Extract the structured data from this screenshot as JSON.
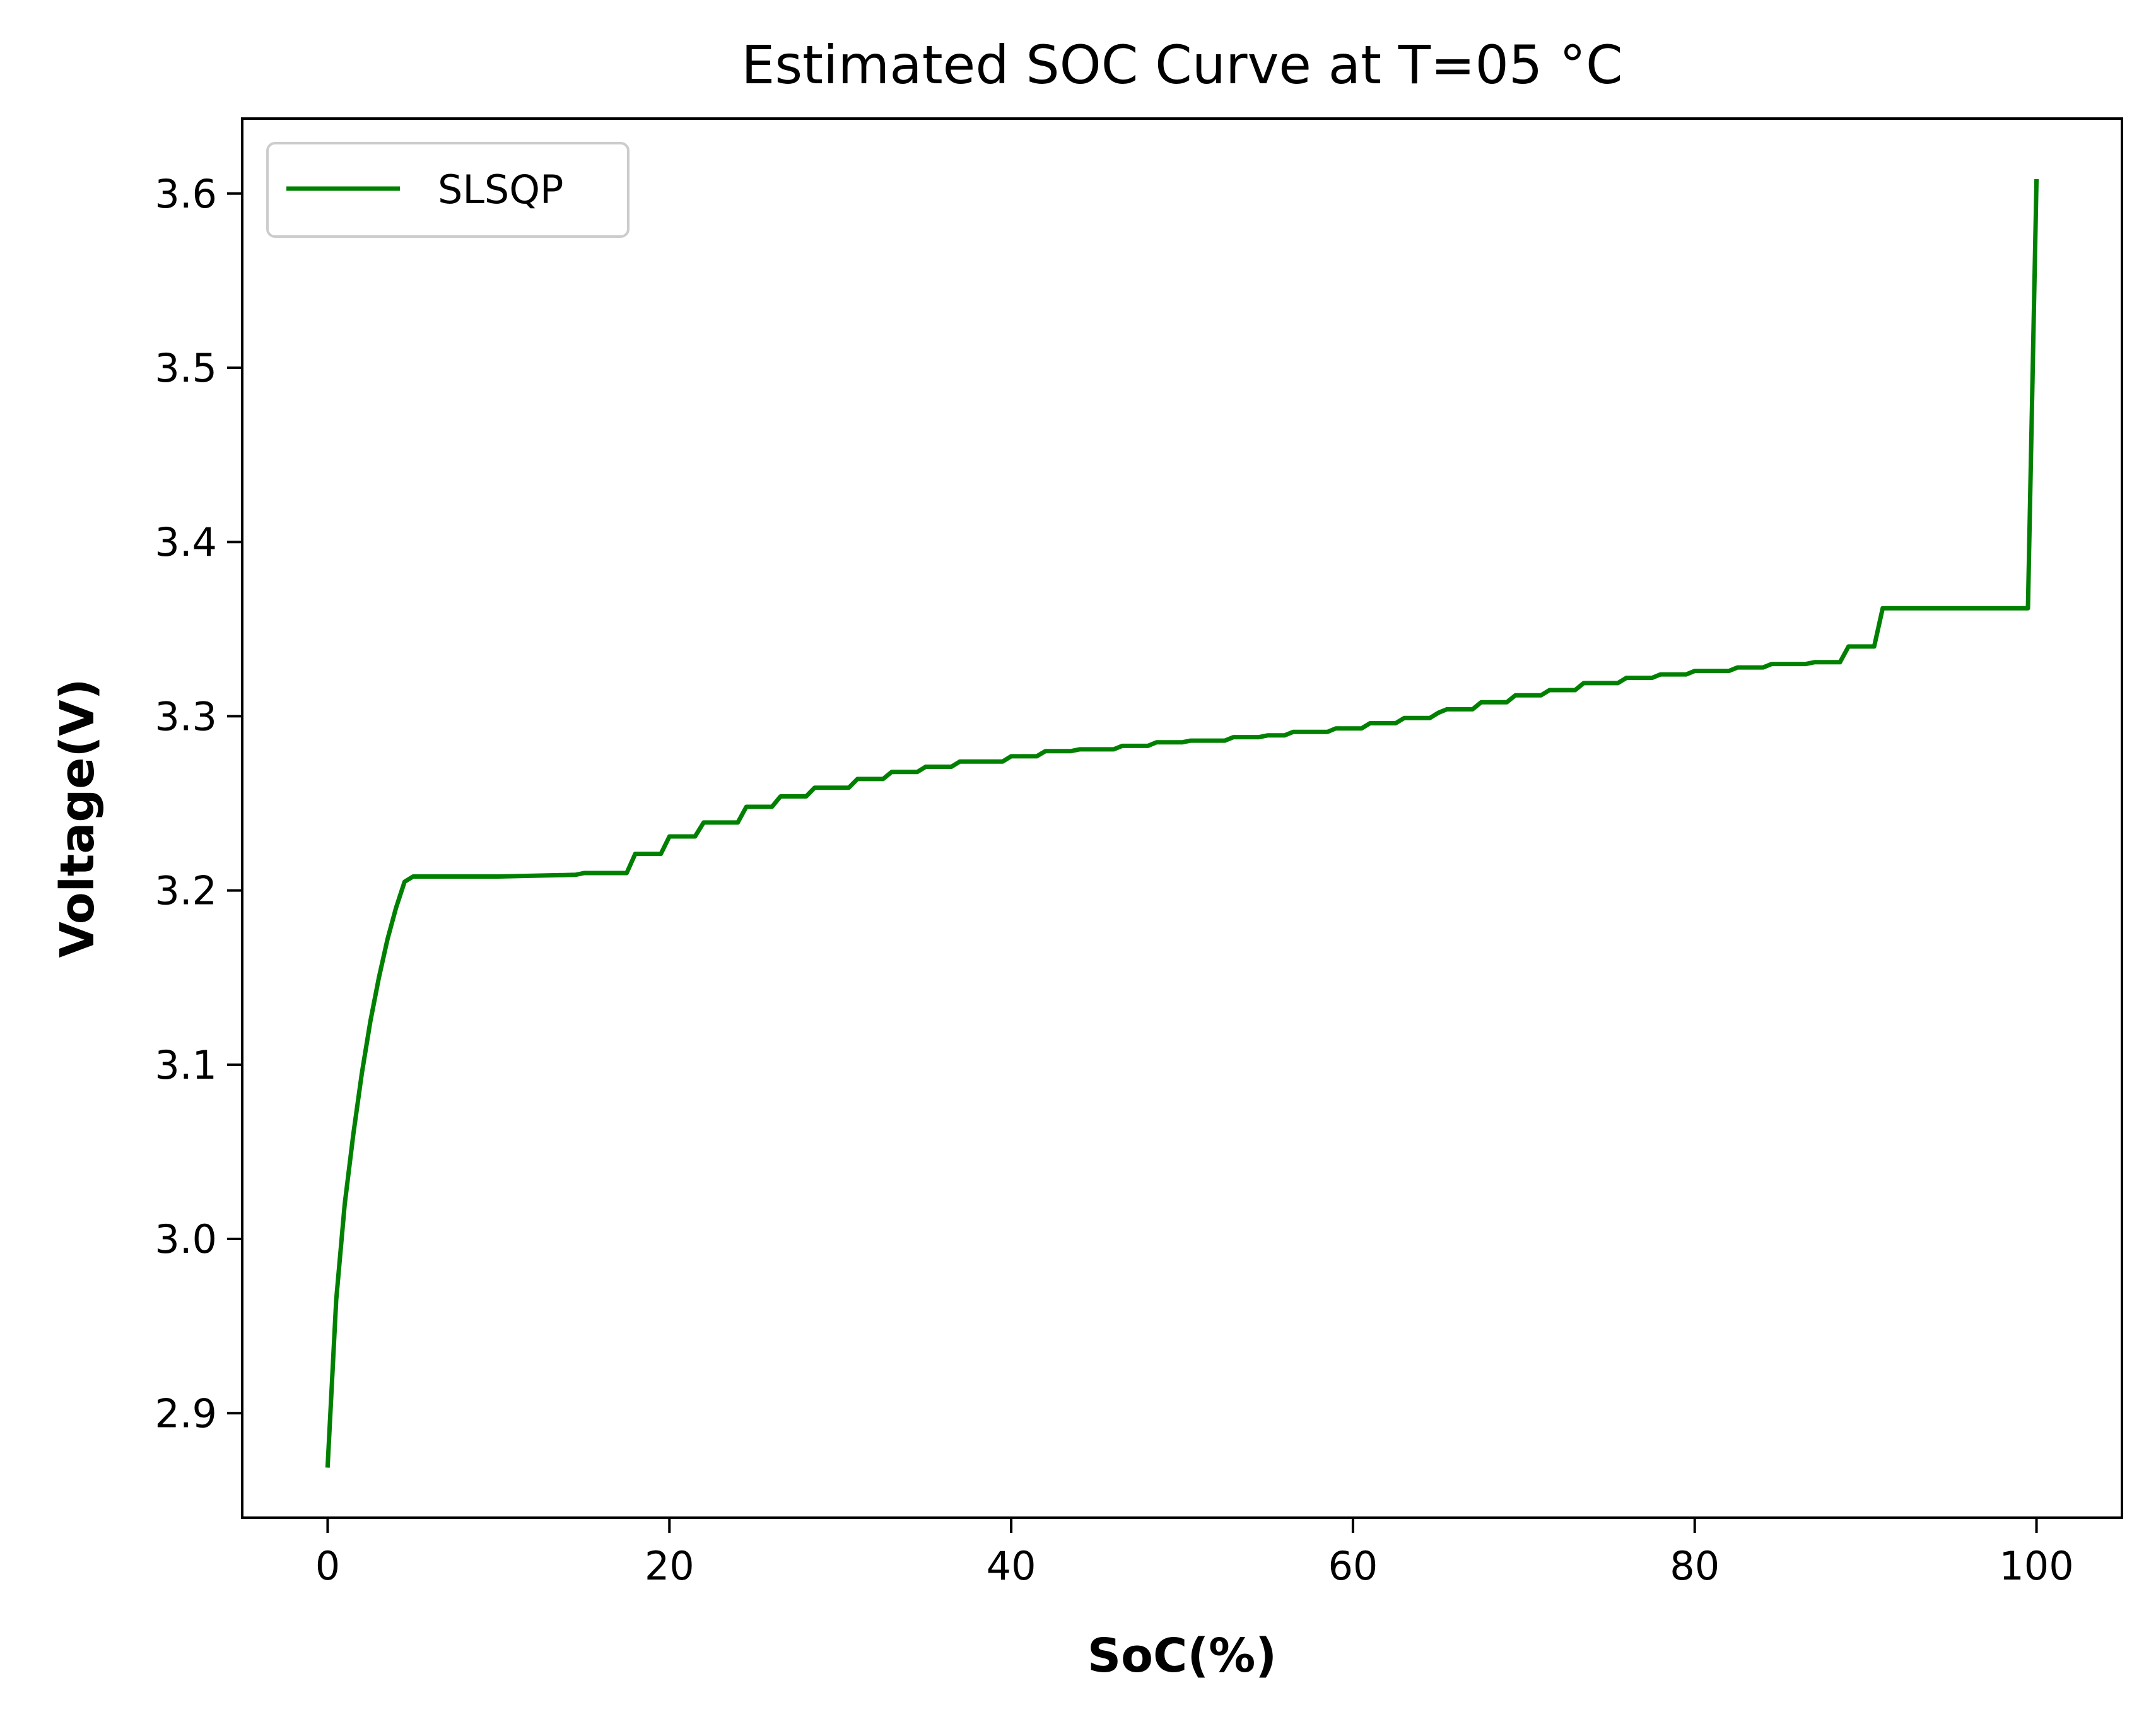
{
  "chart_data": {
    "type": "line",
    "title": "Estimated SOC Curve at T=05 °C",
    "xlabel": "SoC(%)",
    "ylabel": "Voltage(V)",
    "xlim": [
      -5,
      105
    ],
    "ylim": [
      2.84,
      3.643
    ],
    "xticks": [
      0,
      20,
      40,
      60,
      80,
      100
    ],
    "yticks": [
      2.9,
      3.0,
      3.1,
      3.2,
      3.3,
      3.4,
      3.5,
      3.6
    ],
    "xtick_labels": [
      "0",
      "20",
      "40",
      "60",
      "80",
      "100"
    ],
    "ytick_labels": [
      "2.9",
      "3.0",
      "3.1",
      "3.2",
      "3.3",
      "3.4",
      "3.5",
      "3.6"
    ],
    "grid": false,
    "legend": {
      "position": "top-left",
      "entries": [
        "SLSQP"
      ]
    },
    "series": [
      {
        "name": "SLSQP",
        "color": "#008000",
        "x": [
          0,
          0.5,
          1.0,
          1.5,
          2.0,
          2.5,
          3.0,
          3.5,
          4.0,
          4.5,
          5.0,
          10.0,
          14.5,
          15.0,
          17.5,
          18.0,
          19.5,
          20.0,
          21.5,
          22.0,
          24.0,
          24.5,
          26.0,
          26.5,
          28.0,
          28.5,
          30.5,
          31.0,
          32.5,
          33.0,
          34.5,
          35.0,
          36.5,
          37.0,
          39.5,
          40.0,
          41.5,
          42.0,
          43.5,
          44.0,
          46.0,
          46.5,
          48.0,
          48.5,
          50.0,
          50.5,
          52.5,
          53.0,
          54.5,
          55.0,
          56.0,
          56.5,
          58.5,
          59.0,
          60.5,
          61.0,
          62.5,
          63.0,
          64.5,
          65.0,
          65.5,
          67.0,
          67.5,
          69.0,
          69.5,
          71.0,
          71.5,
          73.0,
          73.5,
          75.5,
          76.0,
          77.5,
          78.0,
          79.5,
          80.0,
          82.0,
          82.5,
          84.0,
          84.5,
          86.5,
          87.0,
          88.5,
          89.0,
          90.5,
          91.0,
          95.0,
          99.5,
          100.0
        ],
        "y": [
          2.87,
          2.965,
          3.02,
          3.06,
          3.095,
          3.125,
          3.15,
          3.172,
          3.19,
          3.205,
          3.208,
          3.208,
          3.209,
          3.21,
          3.21,
          3.221,
          3.221,
          3.231,
          3.231,
          3.239,
          3.239,
          3.248,
          3.248,
          3.254,
          3.254,
          3.259,
          3.259,
          3.264,
          3.264,
          3.268,
          3.268,
          3.271,
          3.271,
          3.274,
          3.274,
          3.277,
          3.277,
          3.28,
          3.28,
          3.281,
          3.281,
          3.283,
          3.283,
          3.285,
          3.285,
          3.286,
          3.286,
          3.288,
          3.288,
          3.289,
          3.289,
          3.291,
          3.291,
          3.293,
          3.293,
          3.296,
          3.296,
          3.299,
          3.299,
          3.302,
          3.304,
          3.304,
          3.308,
          3.308,
          3.312,
          3.312,
          3.315,
          3.315,
          3.319,
          3.319,
          3.322,
          3.322,
          3.324,
          3.324,
          3.326,
          3.326,
          3.328,
          3.328,
          3.33,
          3.33,
          3.331,
          3.331,
          3.34,
          3.34,
          3.362,
          3.362,
          3.362,
          3.607
        ]
      }
    ]
  }
}
